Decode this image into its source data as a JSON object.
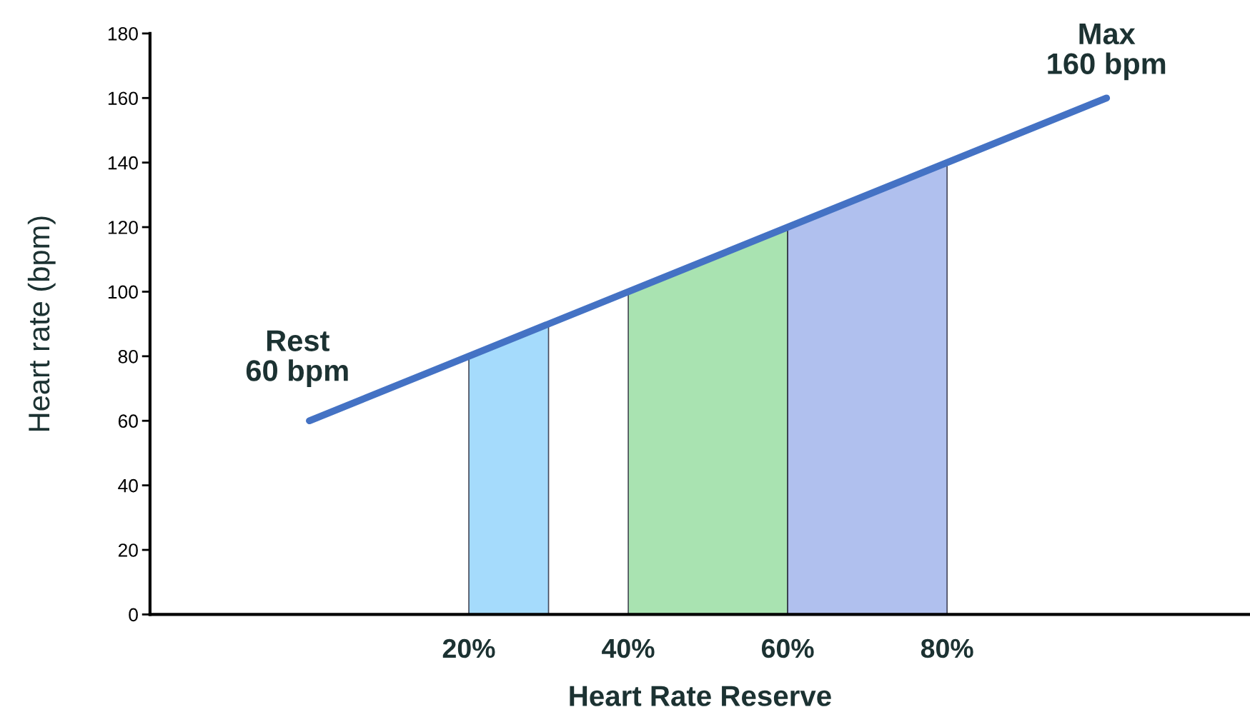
{
  "chart_data": {
    "type": "line",
    "xlabel": "Heart Rate Reserve",
    "ylabel": "Heart rate (bpm)",
    "xlim": [
      -20,
      118
    ],
    "ylim": [
      0,
      180
    ],
    "xticks": [
      {
        "value": 20,
        "label": "20%"
      },
      {
        "value": 40,
        "label": "40%"
      },
      {
        "value": 60,
        "label": "60%"
      },
      {
        "value": 80,
        "label": "80%"
      }
    ],
    "yticks": [
      0,
      20,
      40,
      60,
      80,
      100,
      120,
      140,
      160,
      180
    ],
    "grid": false,
    "series": [
      {
        "type": "area",
        "color": "#8fd2fb",
        "x": [
          20,
          30
        ],
        "values": [
          80,
          90
        ]
      },
      {
        "type": "area",
        "color": "#93dc9e",
        "x": [
          40,
          60
        ],
        "values": [
          100,
          120
        ]
      },
      {
        "type": "area",
        "color": "#9cb0ea",
        "x": [
          60,
          80
        ],
        "values": [
          120,
          140
        ]
      },
      {
        "color": "#4472c4",
        "x": [
          0,
          100
        ],
        "values": [
          60,
          160
        ]
      }
    ],
    "annotations": [
      {
        "text": "Rest\n60 bpm",
        "x": 0,
        "y": 60
      },
      {
        "text": "Max\n160 bpm",
        "x": 100,
        "y": 160
      }
    ]
  }
}
